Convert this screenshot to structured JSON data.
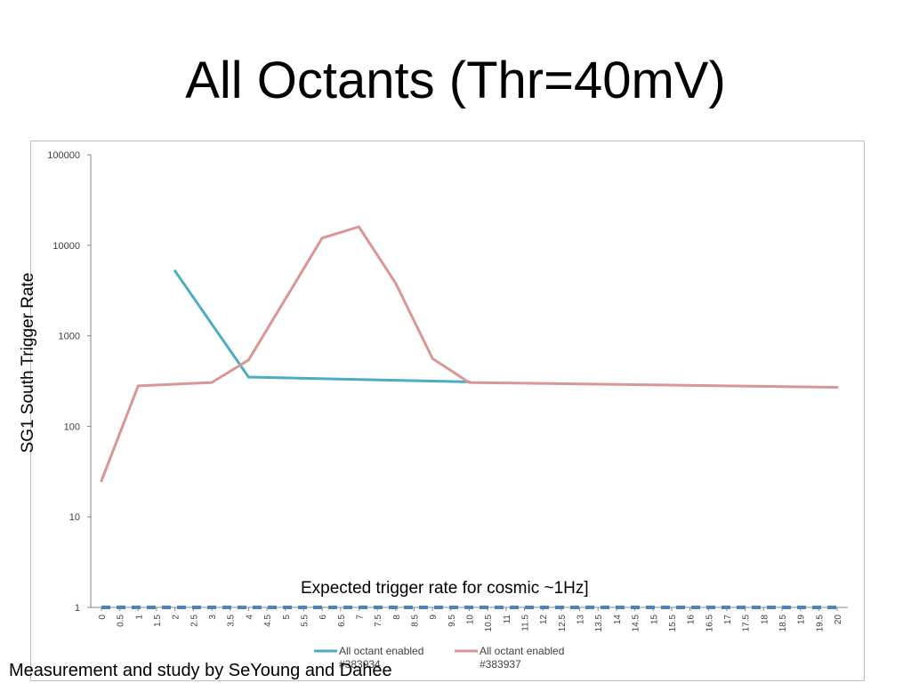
{
  "slide": {
    "title": "All Octants (Thr=40mV)",
    "footer": "Measurement and study by SeYoung and Dahee"
  },
  "chart_data": {
    "type": "line",
    "ylabel": "SG1 South Trigger Rate",
    "xlabel": "",
    "yscale": "log",
    "ylim": [
      1,
      100000
    ],
    "y_ticks": [
      "1",
      "10",
      "100",
      "1000",
      "10000",
      "100000"
    ],
    "categories": [
      "0",
      "0.5",
      "1",
      "1.5",
      "2",
      "2.5",
      "3",
      "3.5",
      "4",
      "4.5",
      "5",
      "5.5",
      "6",
      "6.5",
      "7",
      "7.5",
      "8",
      "8.5",
      "9",
      "9.5",
      "10",
      "10.5",
      "11",
      "11.5",
      "12",
      "12.5",
      "13",
      "13.5",
      "14",
      "14.5",
      "15",
      "15.5",
      "16",
      "16.5",
      "17",
      "17.5",
      "18",
      "18.5",
      "19",
      "19.5",
      "20"
    ],
    "series": [
      {
        "name_line1": "All octant enabled",
        "name_line2": "#383934",
        "color": "#4bacc6",
        "values": [
          null,
          null,
          null,
          null,
          5200,
          null,
          null,
          null,
          350,
          null,
          null,
          null,
          null,
          null,
          null,
          null,
          null,
          null,
          null,
          null,
          310,
          null,
          null,
          null,
          null,
          null,
          null,
          null,
          null,
          null,
          null,
          null,
          null,
          null,
          null,
          null,
          null,
          null,
          null,
          null,
          null
        ]
      },
      {
        "name_line1": "All octant enabled",
        "name_line2": "#383937",
        "color": "#d99694",
        "values": [
          25,
          null,
          280,
          null,
          null,
          null,
          305,
          null,
          540,
          null,
          null,
          null,
          12000,
          null,
          16000,
          null,
          3800,
          null,
          560,
          null,
          305,
          null,
          null,
          null,
          null,
          null,
          null,
          null,
          null,
          null,
          null,
          null,
          null,
          null,
          null,
          null,
          null,
          null,
          null,
          null,
          270
        ]
      },
      {
        "name": "",
        "color": "#4f81bd",
        "style": "dashed",
        "values": [
          1,
          1,
          1,
          1,
          1,
          1,
          1,
          1,
          1,
          1,
          1,
          1,
          1,
          1,
          1,
          1,
          1,
          1,
          1,
          1,
          1,
          1,
          1,
          1,
          1,
          1,
          1,
          1,
          1,
          1,
          1,
          1,
          1,
          1,
          1,
          1,
          1,
          1,
          1,
          1,
          1
        ]
      }
    ],
    "annotation": "Expected trigger rate for cosmic ~1Hz]",
    "grid": false,
    "legend_position": "bottom"
  }
}
